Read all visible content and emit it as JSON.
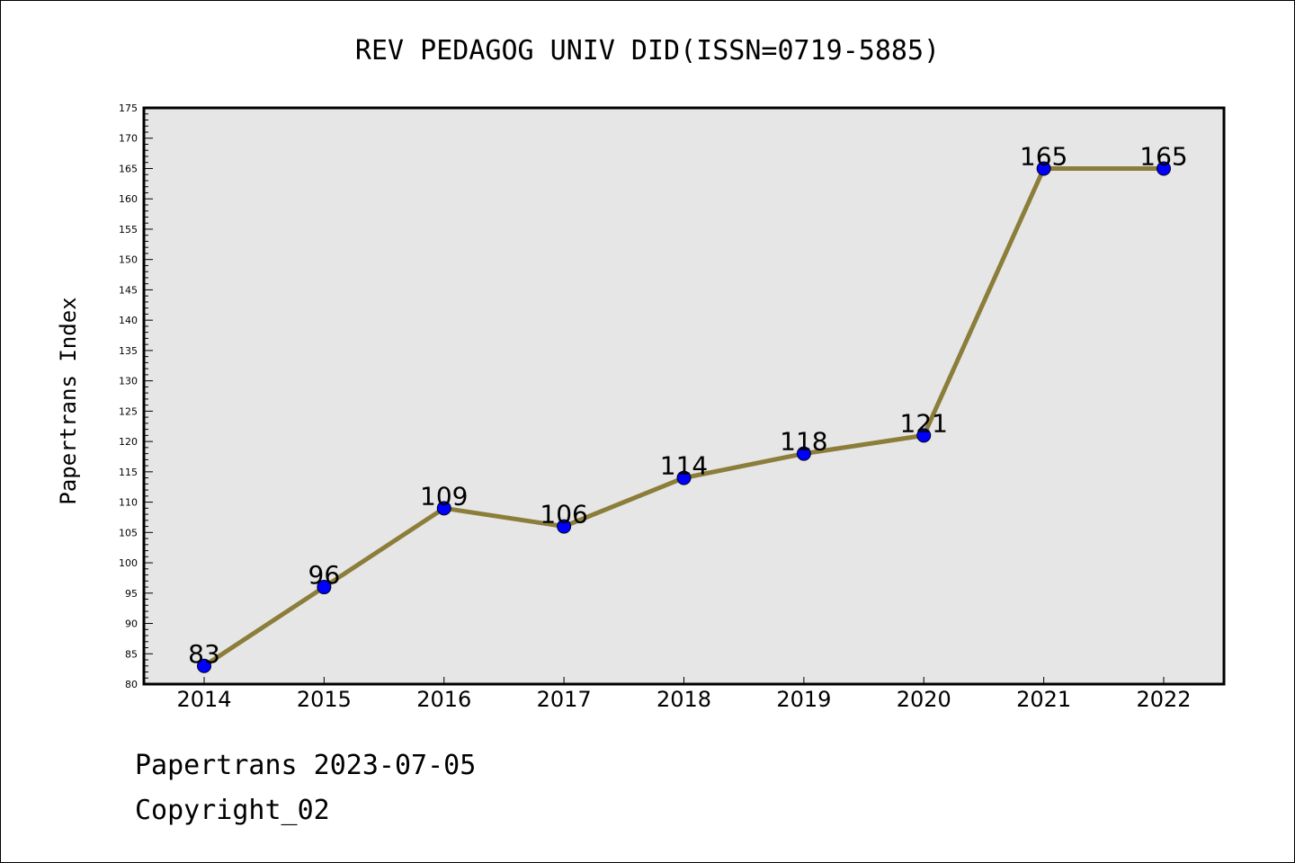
{
  "chart_data": {
    "type": "line",
    "title": "REV PEDAGOG UNIV DID(ISSN=0719-5885)",
    "xlabel": "",
    "ylabel": "Papertrans Index",
    "categories": [
      "2014",
      "2015",
      "2016",
      "2017",
      "2018",
      "2019",
      "2020",
      "2021",
      "2022"
    ],
    "series": [
      {
        "values": [
          83,
          96,
          109,
          106,
          114,
          118,
          121,
          165,
          165
        ]
      }
    ],
    "data_labels": [
      "83",
      "96",
      "109",
      "106",
      "114",
      "118",
      "121",
      "165",
      "165"
    ],
    "ylim": [
      80,
      175
    ],
    "y_ticks": [
      "80",
      "85",
      "90",
      "95",
      "100",
      "105",
      "110",
      "115",
      "120",
      "125",
      "130",
      "135",
      "140",
      "145",
      "150",
      "155",
      "160",
      "165",
      "170",
      "175"
    ],
    "grid": false,
    "legend": "none",
    "colors": {
      "line": "#8B7D3A",
      "marker": "#0000FF",
      "plot_background": "#E6E6E6"
    }
  },
  "footer": {
    "line1": "Papertrans 2023-07-05",
    "line2": "Copyright_02"
  }
}
